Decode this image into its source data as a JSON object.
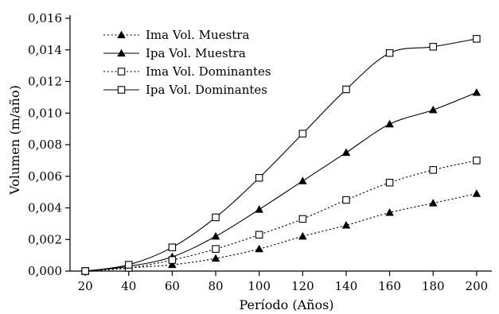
{
  "chart_data": {
    "type": "line",
    "xlabel": "Período (Años)",
    "ylabel": "Volumen (m/año)",
    "x": [
      20,
      40,
      60,
      80,
      100,
      120,
      140,
      160,
      180,
      200
    ],
    "x_ticks": [
      "20",
      "40",
      "60",
      "80",
      "100",
      "120",
      "140",
      "160",
      "180",
      "200"
    ],
    "y_ticks": [
      "0,000",
      "0,002",
      "0,004",
      "0,006",
      "0,008",
      "0,010",
      "0,012",
      "0,014",
      "0,016"
    ],
    "xlim": [
      13,
      207
    ],
    "ylim": [
      0,
      0.016
    ],
    "grid": false,
    "legend_position": "top-left",
    "series": [
      {
        "name": "Ima Vol. Muestra",
        "marker": "filled-triangle",
        "line_style": "dotted",
        "values": [
          0.0,
          0.0002,
          0.0004,
          0.0008,
          0.0014,
          0.0022,
          0.0029,
          0.0037,
          0.0043,
          0.0049
        ]
      },
      {
        "name": "Ipa Vol. Muestra",
        "marker": "filled-triangle",
        "line_style": "solid",
        "values": [
          0.0,
          0.0003,
          0.0009,
          0.0022,
          0.0039,
          0.0057,
          0.0075,
          0.0093,
          0.0102,
          0.0113
        ]
      },
      {
        "name": "Ima Vol. Dominantes",
        "marker": "open-square",
        "line_style": "dotted",
        "values": [
          0.0,
          0.0002,
          0.0007,
          0.0014,
          0.0023,
          0.0033,
          0.0045,
          0.0056,
          0.0064,
          0.007
        ]
      },
      {
        "name": "Ipa Vol. Dominantes",
        "marker": "open-square",
        "line_style": "solid",
        "values": [
          0.0,
          0.0004,
          0.0015,
          0.0034,
          0.0059,
          0.0087,
          0.0115,
          0.0138,
          0.0142,
          0.0147
        ]
      }
    ]
  }
}
